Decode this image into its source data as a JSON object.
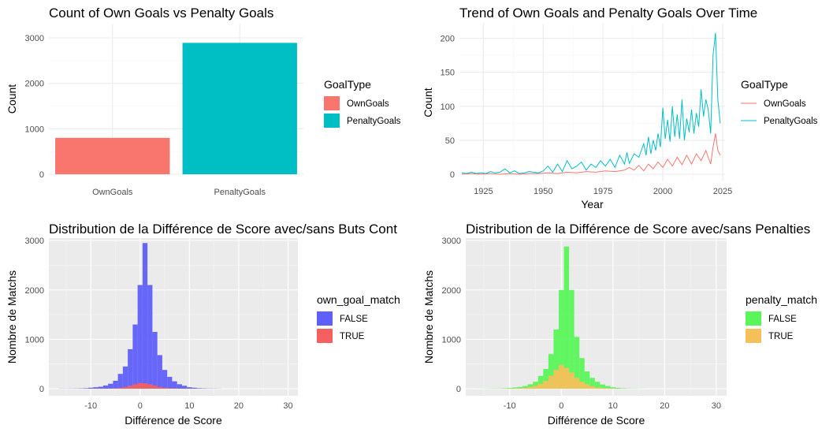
{
  "chart_data": [
    {
      "type": "bar",
      "title": "Count of Own Goals vs Penalty Goals",
      "xlabel": "",
      "ylabel": "Count",
      "categories": [
        "OwnGoals",
        "PenaltyGoals"
      ],
      "values": [
        800,
        2890
      ],
      "colors": [
        "#F8766D",
        "#00BFC4"
      ],
      "ylim": [
        0,
        3000
      ],
      "yticks": [
        0,
        1000,
        2000,
        3000
      ],
      "legend": {
        "title": "GoalType",
        "entries": [
          "OwnGoals",
          "PenaltyGoals"
        ],
        "placement": "right"
      },
      "theme": "minimal",
      "grid": true
    },
    {
      "type": "line",
      "title": "Trend of Own Goals and Penalty Goals Over Time",
      "xlabel": "Year",
      "ylabel": "Count",
      "xlim": [
        1915,
        2026
      ],
      "ylim": [
        0,
        210
      ],
      "xticks": [
        1925,
        1950,
        1975,
        2000,
        2025
      ],
      "yticks": [
        0,
        50,
        100,
        150,
        200
      ],
      "legend": {
        "title": "GoalType",
        "entries": [
          "OwnGoals",
          "PenaltyGoals"
        ],
        "placement": "right"
      },
      "theme": "minimal",
      "grid": true,
      "series": [
        {
          "name": "OwnGoals",
          "color": "#F8766D",
          "points": [
            [
              1916,
              0
            ],
            [
              1920,
              1
            ],
            [
              1924,
              0
            ],
            [
              1928,
              1
            ],
            [
              1932,
              0
            ],
            [
              1936,
              1
            ],
            [
              1940,
              0
            ],
            [
              1944,
              1
            ],
            [
              1948,
              1
            ],
            [
              1952,
              2
            ],
            [
              1956,
              1
            ],
            [
              1960,
              3
            ],
            [
              1964,
              2
            ],
            [
              1968,
              4
            ],
            [
              1972,
              3
            ],
            [
              1976,
              5
            ],
            [
              1980,
              4
            ],
            [
              1984,
              6
            ],
            [
              1986,
              10
            ],
            [
              1988,
              6
            ],
            [
              1990,
              13
            ],
            [
              1992,
              5
            ],
            [
              1994,
              15
            ],
            [
              1996,
              8
            ],
            [
              1998,
              18
            ],
            [
              2000,
              10
            ],
            [
              2002,
              22
            ],
            [
              2004,
              12
            ],
            [
              2006,
              25
            ],
            [
              2008,
              14
            ],
            [
              2010,
              28
            ],
            [
              2012,
              15
            ],
            [
              2014,
              30
            ],
            [
              2016,
              20
            ],
            [
              2018,
              35
            ],
            [
              2019,
              25
            ],
            [
              2020,
              15
            ],
            [
              2021,
              40
            ],
            [
              2022,
              60
            ],
            [
              2023,
              35
            ],
            [
              2024,
              28
            ]
          ]
        },
        {
          "name": "PenaltyGoals",
          "color": "#00BFC4",
          "points": [
            [
              1916,
              2
            ],
            [
              1918,
              1
            ],
            [
              1920,
              3
            ],
            [
              1922,
              1
            ],
            [
              1924,
              2
            ],
            [
              1926,
              1
            ],
            [
              1928,
              4
            ],
            [
              1930,
              2
            ],
            [
              1932,
              3
            ],
            [
              1934,
              8
            ],
            [
              1936,
              2
            ],
            [
              1938,
              5
            ],
            [
              1940,
              1
            ],
            [
              1942,
              2
            ],
            [
              1944,
              4
            ],
            [
              1946,
              3
            ],
            [
              1948,
              2
            ],
            [
              1950,
              5
            ],
            [
              1952,
              12
            ],
            [
              1954,
              3
            ],
            [
              1956,
              15
            ],
            [
              1958,
              4
            ],
            [
              1960,
              20
            ],
            [
              1962,
              8
            ],
            [
              1964,
              12
            ],
            [
              1966,
              18
            ],
            [
              1968,
              6
            ],
            [
              1970,
              15
            ],
            [
              1972,
              10
            ],
            [
              1974,
              20
            ],
            [
              1976,
              12
            ],
            [
              1978,
              22
            ],
            [
              1980,
              10
            ],
            [
              1982,
              28
            ],
            [
              1984,
              15
            ],
            [
              1985,
              32
            ],
            [
              1986,
              16
            ],
            [
              1988,
              30
            ],
            [
              1990,
              25
            ],
            [
              1992,
              45
            ],
            [
              1993,
              28
            ],
            [
              1994,
              55
            ],
            [
              1995,
              30
            ],
            [
              1996,
              50
            ],
            [
              1997,
              35
            ],
            [
              1998,
              60
            ],
            [
              1999,
              40
            ],
            [
              2000,
              98
            ],
            [
              2001,
              52
            ],
            [
              2002,
              80
            ],
            [
              2003,
              48
            ],
            [
              2004,
              100
            ],
            [
              2005,
              55
            ],
            [
              2006,
              88
            ],
            [
              2007,
              52
            ],
            [
              2008,
              110
            ],
            [
              2009,
              50
            ],
            [
              2010,
              82
            ],
            [
              2011,
              62
            ],
            [
              2012,
              95
            ],
            [
              2013,
              60
            ],
            [
              2014,
              90
            ],
            [
              2015,
              70
            ],
            [
              2016,
              125
            ],
            [
              2017,
              85
            ],
            [
              2018,
              110
            ],
            [
              2019,
              95
            ],
            [
              2020,
              60
            ],
            [
              2021,
              175
            ],
            [
              2022,
              208
            ],
            [
              2023,
              110
            ],
            [
              2024,
              75
            ]
          ]
        }
      ]
    },
    {
      "type": "histogram",
      "title": "Distribution de la Différence de Score avec/sans Buts Cont",
      "xlabel": "Différence de Score",
      "ylabel": "Nombre de Matchs",
      "xlim": [
        -18.5,
        32
      ],
      "ylim": [
        0,
        3050
      ],
      "xticks": [
        -10,
        0,
        10,
        20,
        30
      ],
      "yticks": [
        0,
        1000,
        2000,
        3000
      ],
      "bins": [
        -16,
        -15,
        -14,
        -13,
        -12,
        -11,
        -10,
        -9,
        -8,
        -7,
        -6,
        -5,
        -4,
        -3,
        -2,
        -1,
        0,
        1,
        2,
        3,
        4,
        5,
        6,
        7,
        8,
        9,
        10,
        11,
        12,
        13,
        14,
        15,
        16
      ],
      "legend": {
        "title": "own_goal_match",
        "entries": [
          "FALSE",
          "TRUE"
        ],
        "placement": "right"
      },
      "theme": "grey",
      "series": [
        {
          "name": "FALSE",
          "color": "#5F5FFA",
          "values": [
            2,
            2,
            3,
            4,
            6,
            10,
            20,
            30,
            40,
            65,
            100,
            160,
            300,
            450,
            800,
            1300,
            2100,
            2950,
            2100,
            1150,
            680,
            380,
            240,
            150,
            90,
            60,
            30,
            20,
            10,
            6,
            4,
            3,
            2
          ]
        },
        {
          "name": "TRUE",
          "color": "#F55F5F",
          "values": [
            0,
            0,
            0,
            0,
            0,
            0,
            1,
            1,
            2,
            3,
            5,
            10,
            20,
            35,
            60,
            90,
            115,
            110,
            90,
            60,
            35,
            22,
            12,
            7,
            4,
            2,
            1,
            1,
            0,
            0,
            0,
            0,
            0
          ]
        }
      ]
    },
    {
      "type": "histogram",
      "title": "Distribution de la Différence de Score avec/sans Penalties",
      "xlabel": "Différence de Score",
      "ylabel": "Nombre de Matchs",
      "xlim": [
        -18.5,
        32
      ],
      "ylim": [
        0,
        3050
      ],
      "xticks": [
        -10,
        0,
        10,
        20,
        30
      ],
      "yticks": [
        0,
        1000,
        2000,
        3000
      ],
      "bins": [
        -16,
        -15,
        -14,
        -13,
        -12,
        -11,
        -10,
        -9,
        -8,
        -7,
        -6,
        -5,
        -4,
        -3,
        -2,
        -1,
        0,
        1,
        2,
        3,
        4,
        5,
        6,
        7,
        8,
        9,
        10,
        11,
        12,
        13,
        14,
        15,
        16
      ],
      "legend": {
        "title": "penalty_match",
        "entries": [
          "FALSE",
          "TRUE"
        ],
        "placement": "right"
      },
      "theme": "grey",
      "series": [
        {
          "name": "FALSE",
          "color": "#5AF55A",
          "values": [
            1,
            2,
            3,
            4,
            5,
            8,
            15,
            25,
            35,
            55,
            90,
            140,
            260,
            400,
            700,
            1200,
            2000,
            2880,
            2000,
            1050,
            620,
            350,
            220,
            140,
            85,
            55,
            28,
            18,
            9,
            5,
            3,
            2,
            1
          ]
        },
        {
          "name": "TRUE",
          "color": "#F5C05A",
          "values": [
            0,
            0,
            0,
            0,
            0,
            1,
            3,
            6,
            10,
            20,
            35,
            60,
            100,
            160,
            260,
            380,
            480,
            420,
            330,
            220,
            140,
            90,
            50,
            30,
            18,
            10,
            5,
            3,
            1,
            0,
            0,
            0,
            0
          ]
        }
      ]
    }
  ]
}
